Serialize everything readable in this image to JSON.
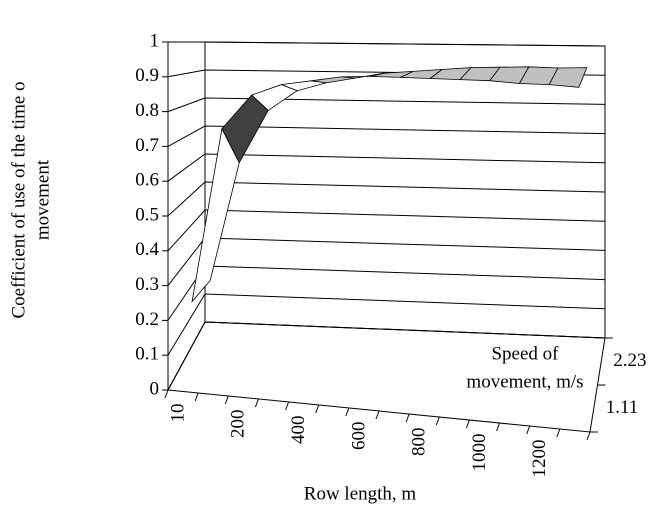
{
  "chart_data": {
    "type": "surface3d",
    "y_label": [
      "Coefficient of use of the time o",
      "movement"
    ],
    "x_label": "Row length, m",
    "depth_label": [
      "Speed of",
      "movement, m/s"
    ],
    "categories": [
      "10",
      null,
      "200",
      null,
      "400",
      null,
      "600",
      null,
      "800",
      null,
      "1000",
      null,
      "1200",
      null
    ],
    "series": [
      {
        "name": "1.11",
        "values": [
          0.22,
          0.75,
          0.86,
          0.9,
          0.92,
          0.94,
          0.95,
          0.955,
          0.96,
          0.965,
          0.97,
          0.97,
          0.975,
          0.975
        ]
      },
      {
        "name": "2.23",
        "values": [
          0.2,
          0.6,
          0.78,
          0.85,
          0.88,
          0.9,
          0.92,
          0.93,
          0.94,
          0.95,
          0.955,
          0.96,
          0.96,
          0.965
        ]
      }
    ],
    "ylim": [
      0,
      1
    ],
    "yticks": [
      0,
      0.1,
      0.2,
      0.3,
      0.4,
      0.5,
      0.6,
      0.7,
      0.8,
      0.9,
      1
    ],
    "grid": true,
    "band_colors": [
      "#ffffff",
      "#c0c0c0",
      "#808080",
      "#404040"
    ]
  }
}
